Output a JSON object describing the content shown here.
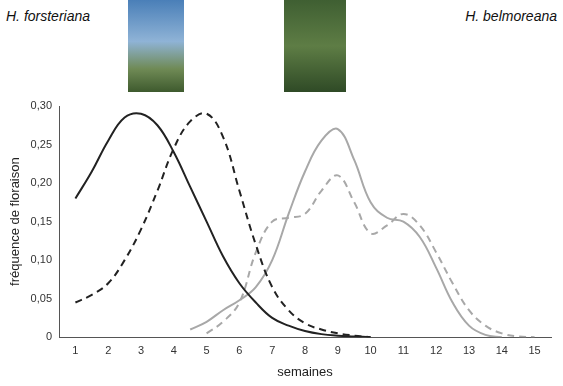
{
  "chart_data": {
    "type": "line",
    "annotations": [
      "H. forsteriana",
      "H. belmoreana"
    ],
    "x_label": "semaines",
    "y_label": "fréquence de floraison",
    "x": [
      1,
      1.5,
      2,
      2.5,
      3,
      3.5,
      4,
      4.5,
      5,
      5.5,
      6,
      6.5,
      7,
      7.5,
      8,
      8.5,
      9,
      9.5,
      10,
      10.5,
      11,
      11.5,
      12,
      12.5,
      13,
      13.5,
      14,
      14.5,
      15
    ],
    "series": [
      {
        "color": "#222222",
        "line_style": "solid",
        "values": [
          0.18,
          0.215,
          0.255,
          0.285,
          0.29,
          0.275,
          0.24,
          0.195,
          0.15,
          0.105,
          0.07,
          0.045,
          0.025,
          0.015,
          0.008,
          0.004,
          0.002,
          0.001,
          0,
          null,
          null,
          null,
          null,
          null,
          null,
          null,
          null,
          null,
          null
        ]
      },
      {
        "color": "#222222",
        "line_style": "dashed",
        "values": [
          0.045,
          0.055,
          0.07,
          0.1,
          0.14,
          0.19,
          0.245,
          0.28,
          0.29,
          0.26,
          0.19,
          0.12,
          0.065,
          0.035,
          0.018,
          0.01,
          0.005,
          0.002,
          0,
          null,
          null,
          null,
          null,
          null,
          null,
          null,
          null,
          null,
          null
        ]
      },
      {
        "color": "#a8a8a8",
        "line_style": "solid",
        "values": [
          null,
          null,
          null,
          null,
          null,
          null,
          null,
          0.01,
          0.02,
          0.035,
          0.048,
          0.065,
          0.1,
          0.16,
          0.215,
          0.255,
          0.27,
          0.23,
          0.175,
          0.155,
          0.15,
          0.13,
          0.09,
          0.045,
          0.015,
          0.003,
          0,
          null,
          null
        ]
      },
      {
        "color": "#a8a8a8",
        "line_style": "dashed",
        "values": [
          null,
          null,
          null,
          null,
          null,
          null,
          null,
          null,
          0.005,
          0.02,
          0.045,
          0.11,
          0.15,
          0.155,
          0.16,
          0.19,
          0.21,
          0.175,
          0.135,
          0.145,
          0.16,
          0.145,
          0.11,
          0.07,
          0.035,
          0.015,
          0.005,
          0.001,
          0
        ]
      }
    ],
    "xlim": [
      0.5,
      15.5
    ],
    "xticks": [
      1,
      2,
      3,
      4,
      5,
      6,
      7,
      8,
      9,
      10,
      11,
      12,
      13,
      14,
      15
    ],
    "ylim": [
      0,
      0.3
    ],
    "yticks": [
      0,
      {
        "value": 0.05,
        "label": "0,05"
      },
      {
        "value": 0.1,
        "label": "0,10"
      },
      {
        "value": 0.15,
        "label": "0,15"
      },
      {
        "value": 0.2,
        "label": "0,20"
      },
      {
        "value": 0.25,
        "label": "0,25"
      },
      {
        "value": 0.3,
        "label": "0,30"
      }
    ],
    "grid": false
  }
}
